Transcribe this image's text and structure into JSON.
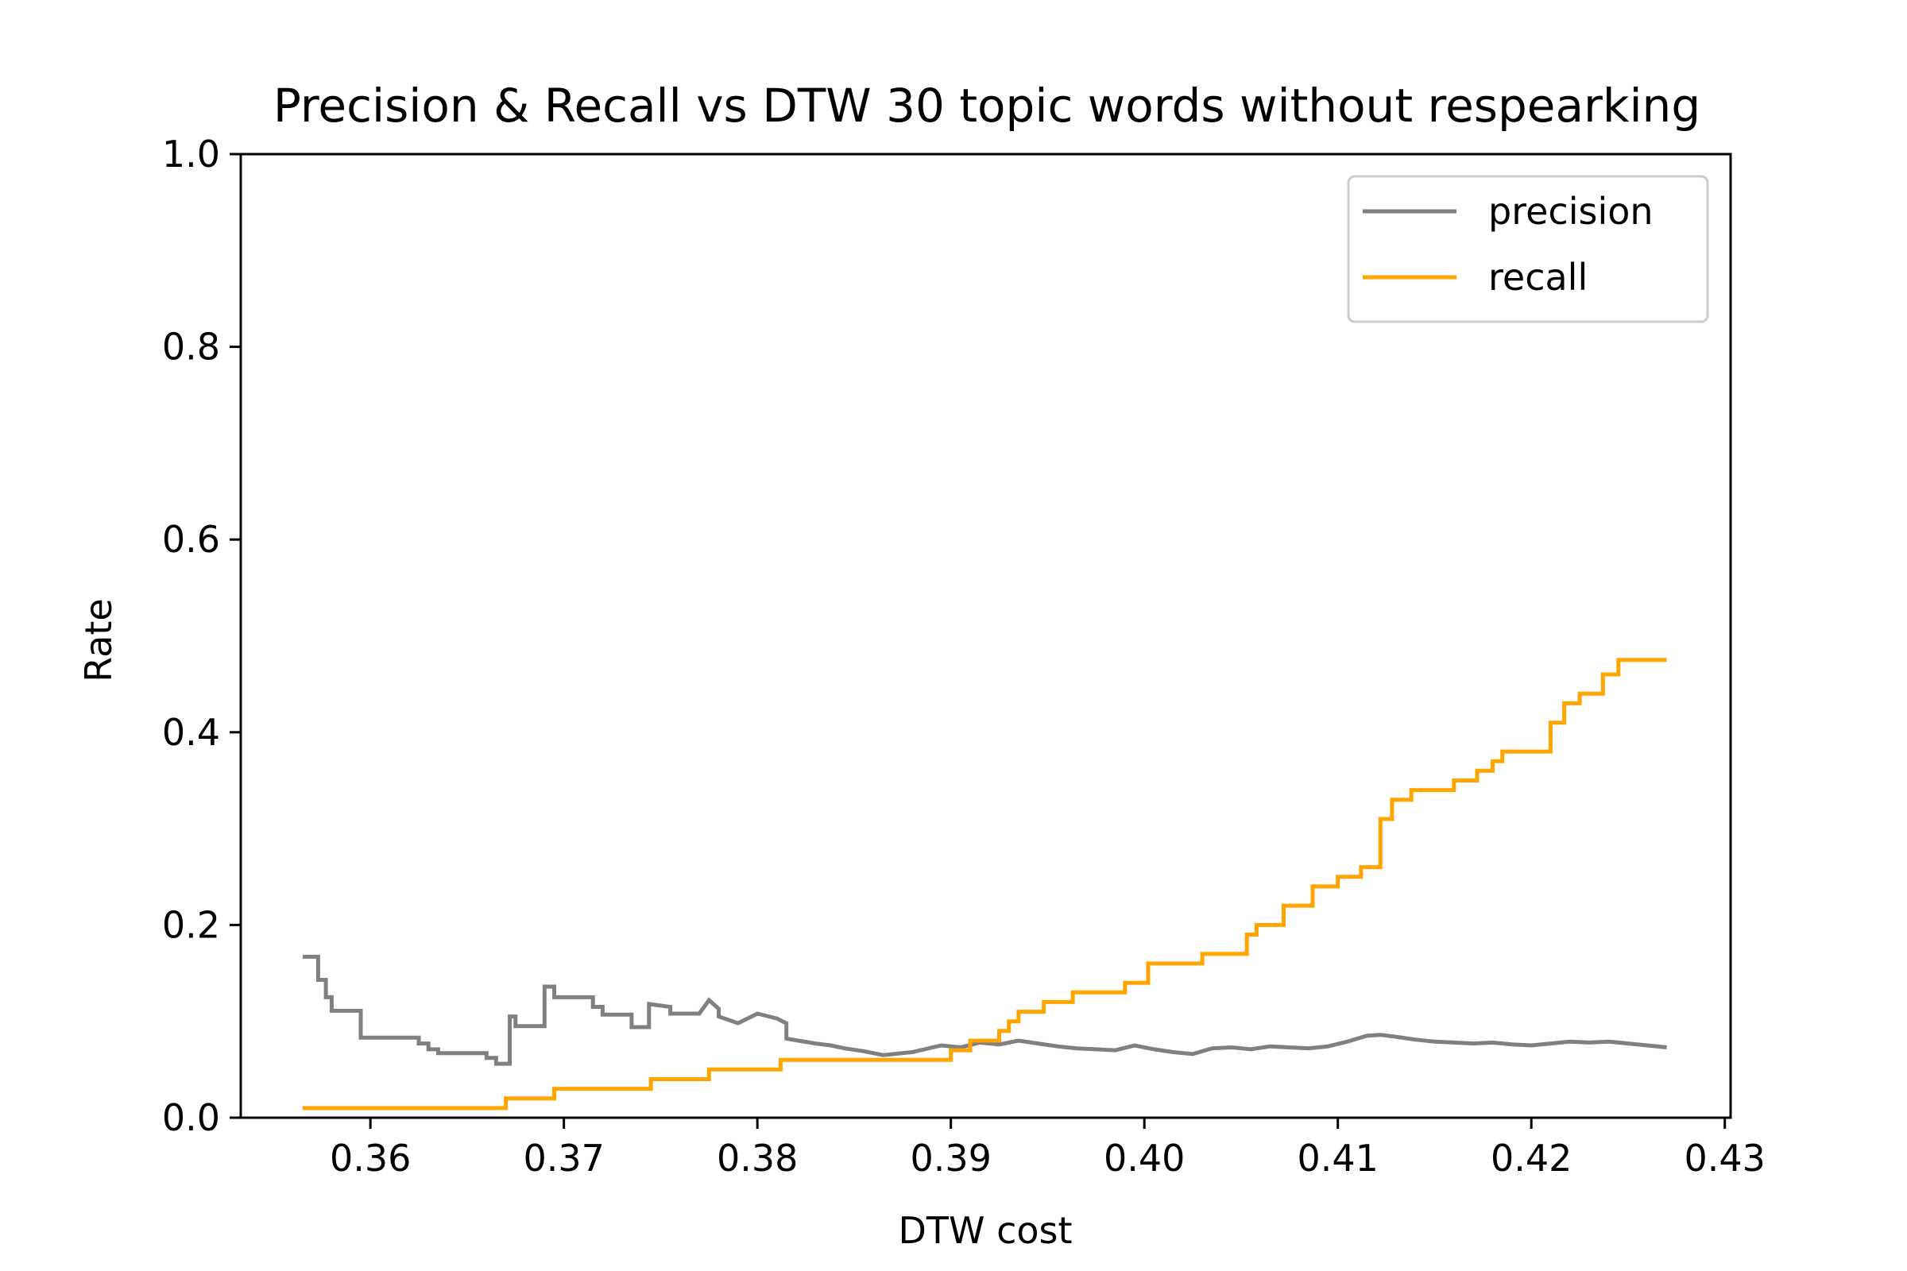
{
  "chart_data": {
    "type": "line",
    "title": "Precision & Recall vs DTW 30 topic words without respearking",
    "xlabel": "DTW cost",
    "ylabel": "Rate",
    "xlim": [
      0.3533,
      0.4303
    ],
    "ylim": [
      0.0,
      1.0
    ],
    "xticks": [
      0.36,
      0.37,
      0.38,
      0.39,
      0.4,
      0.41,
      0.42,
      0.43
    ],
    "xtick_labels": [
      "0.36",
      "0.37",
      "0.38",
      "0.39",
      "0.40",
      "0.41",
      "0.42",
      "0.43"
    ],
    "yticks": [
      0.0,
      0.2,
      0.4,
      0.6,
      0.8,
      1.0
    ],
    "ytick_labels": [
      "0.0",
      "0.2",
      "0.4",
      "0.6",
      "0.8",
      "1.0"
    ],
    "grid": false,
    "legend_position": "top-right",
    "series": [
      {
        "name": "precision",
        "color": "#808080",
        "x": [
          0.3565,
          0.3573,
          0.3573,
          0.3577,
          0.3577,
          0.358,
          0.358,
          0.3583,
          0.3583,
          0.3595,
          0.3595,
          0.36,
          0.36,
          0.3625,
          0.3625,
          0.363,
          0.363,
          0.3635,
          0.3635,
          0.366,
          0.366,
          0.3665,
          0.3665,
          0.3672,
          0.3672,
          0.3675,
          0.3675,
          0.369,
          0.369,
          0.3695,
          0.3695,
          0.3715,
          0.3715,
          0.372,
          0.372,
          0.3735,
          0.3735,
          0.3744,
          0.3744,
          0.3755,
          0.3755,
          0.377,
          0.3775,
          0.3775,
          0.378,
          0.378,
          0.379,
          0.38,
          0.381,
          0.3815,
          0.3815,
          0.383,
          0.3838,
          0.3845,
          0.3855,
          0.3865,
          0.388,
          0.3895,
          0.3905,
          0.3915,
          0.3925,
          0.3935,
          0.3945,
          0.3955,
          0.3965,
          0.3975,
          0.3985,
          0.3995,
          0.4005,
          0.4015,
          0.4025,
          0.4035,
          0.4045,
          0.4055,
          0.4065,
          0.4075,
          0.4085,
          0.4095,
          0.4105,
          0.4115,
          0.4122,
          0.413,
          0.414,
          0.415,
          0.416,
          0.417,
          0.418,
          0.419,
          0.42,
          0.421,
          0.422,
          0.423,
          0.424,
          0.425,
          0.426,
          0.427
        ],
        "values": [
          0.167,
          0.167,
          0.143,
          0.143,
          0.125,
          0.125,
          0.111,
          0.111,
          0.111,
          0.111,
          0.083,
          0.083,
          0.083,
          0.083,
          0.077,
          0.077,
          0.071,
          0.071,
          0.067,
          0.067,
          0.062,
          0.062,
          0.056,
          0.056,
          0.105,
          0.105,
          0.095,
          0.095,
          0.136,
          0.136,
          0.125,
          0.125,
          0.115,
          0.115,
          0.107,
          0.107,
          0.094,
          0.094,
          0.118,
          0.115,
          0.108,
          0.108,
          0.122,
          0.122,
          0.113,
          0.105,
          0.098,
          0.108,
          0.103,
          0.098,
          0.082,
          0.077,
          0.075,
          0.072,
          0.069,
          0.065,
          0.068,
          0.075,
          0.073,
          0.078,
          0.076,
          0.08,
          0.077,
          0.074,
          0.072,
          0.071,
          0.07,
          0.075,
          0.071,
          0.068,
          0.066,
          0.072,
          0.073,
          0.071,
          0.074,
          0.073,
          0.072,
          0.074,
          0.079,
          0.085,
          0.086,
          0.084,
          0.081,
          0.079,
          0.078,
          0.077,
          0.078,
          0.076,
          0.075,
          0.077,
          0.079,
          0.078,
          0.079,
          0.077,
          0.075,
          0.073
        ]
      },
      {
        "name": "recall",
        "color": "#FFA500",
        "x": [
          0.3565,
          0.367,
          0.367,
          0.3695,
          0.3695,
          0.3745,
          0.3745,
          0.3775,
          0.3775,
          0.3812,
          0.3812,
          0.39,
          0.39,
          0.391,
          0.391,
          0.3925,
          0.3925,
          0.393,
          0.393,
          0.3935,
          0.3935,
          0.3948,
          0.3948,
          0.3963,
          0.3963,
          0.399,
          0.399,
          0.4002,
          0.4002,
          0.403,
          0.403,
          0.4053,
          0.4053,
          0.4058,
          0.4058,
          0.4072,
          0.4072,
          0.4087,
          0.4087,
          0.41,
          0.41,
          0.4112,
          0.4112,
          0.4122,
          0.4122,
          0.4128,
          0.4128,
          0.4138,
          0.4138,
          0.416,
          0.416,
          0.4172,
          0.4172,
          0.418,
          0.418,
          0.4185,
          0.4185,
          0.421,
          0.421,
          0.4217,
          0.4217,
          0.4225,
          0.4225,
          0.4237,
          0.4237,
          0.4245,
          0.4245,
          0.427
        ],
        "values": [
          0.01,
          0.01,
          0.02,
          0.02,
          0.03,
          0.03,
          0.04,
          0.04,
          0.05,
          0.05,
          0.06,
          0.06,
          0.07,
          0.07,
          0.08,
          0.08,
          0.09,
          0.09,
          0.1,
          0.1,
          0.11,
          0.11,
          0.12,
          0.12,
          0.13,
          0.13,
          0.14,
          0.14,
          0.16,
          0.16,
          0.17,
          0.17,
          0.19,
          0.19,
          0.2,
          0.2,
          0.22,
          0.22,
          0.24,
          0.24,
          0.25,
          0.25,
          0.26,
          0.26,
          0.31,
          0.31,
          0.33,
          0.33,
          0.34,
          0.34,
          0.35,
          0.35,
          0.36,
          0.36,
          0.37,
          0.37,
          0.38,
          0.38,
          0.41,
          0.41,
          0.43,
          0.43,
          0.44,
          0.44,
          0.46,
          0.46,
          0.475,
          0.475
        ]
      }
    ]
  }
}
